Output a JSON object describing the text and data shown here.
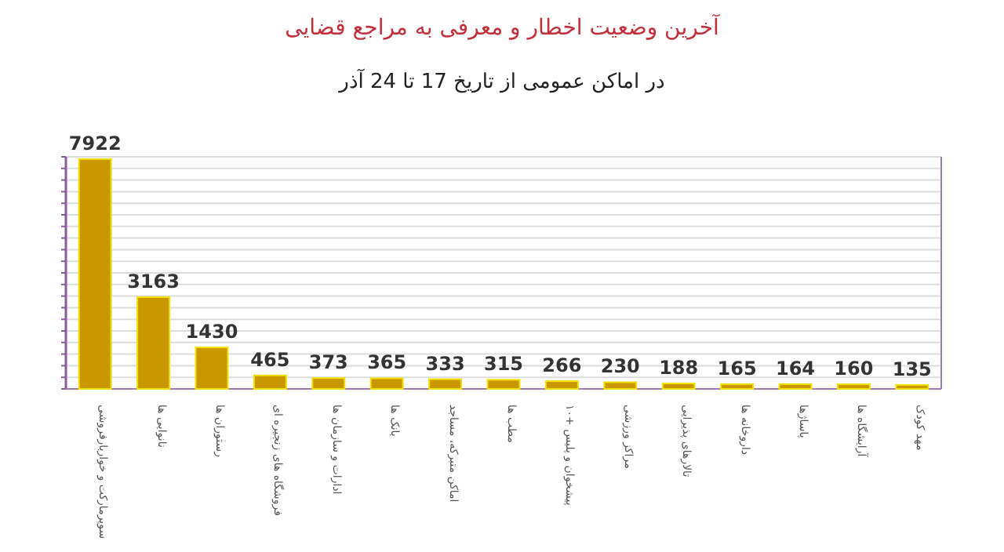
{
  "chart_data": {
    "type": "bar",
    "title": "آخرین وضعیت اخطار و معرفی به مراجع قضایی",
    "subtitle": "در اماکن عمومی از تاریخ  17 تا 24 آذر",
    "categories": [
      "سوپرمارکت و خواربارفروشی",
      "نانوایی ها",
      "رستوران ها",
      "فروشگاه های زنجیره ای",
      "ادارات و سازمان ها",
      "بانک ها",
      "اماکن متبرکه، مساجد",
      "مطب ها",
      "پیشخوان و پلیس +۱۰",
      "مراکز ورزشی",
      "تالارهای پذیرایی",
      "داروخانه ها",
      "پاساژها",
      "آرایشگاه ها",
      "مهد کودک"
    ],
    "values": [
      7922,
      3163,
      1430,
      465,
      373,
      365,
      333,
      315,
      266,
      230,
      188,
      165,
      164,
      160,
      135
    ],
    "color": "#c99700",
    "data_labels": true,
    "ylim": [
      0,
      8000
    ],
    "yticks": [
      {
        "value": 0,
        "label": null
      },
      {
        "value": 400,
        "label": null
      },
      {
        "value": 800,
        "label": null
      },
      {
        "value": 1200,
        "label": null
      },
      {
        "value": 1600,
        "label": null
      },
      {
        "value": 2000,
        "label": null
      },
      {
        "value": 2400,
        "label": null
      },
      {
        "value": 2800,
        "label": null
      },
      {
        "value": 3200,
        "label": null
      },
      {
        "value": 3600,
        "label": null
      },
      {
        "value": 4000,
        "label": null
      },
      {
        "value": 4400,
        "label": null
      },
      {
        "value": 4800,
        "label": null
      },
      {
        "value": 5200,
        "label": null
      },
      {
        "value": 5600,
        "label": null
      },
      {
        "value": 6000,
        "label": null
      },
      {
        "value": 6400,
        "label": null
      },
      {
        "value": 6800,
        "label": null
      },
      {
        "value": 7200,
        "label": null
      },
      {
        "value": 7600,
        "label": null
      },
      {
        "value": 8000,
        "label": null
      }
    ],
    "grid": "y",
    "tick_labels": "x"
  }
}
